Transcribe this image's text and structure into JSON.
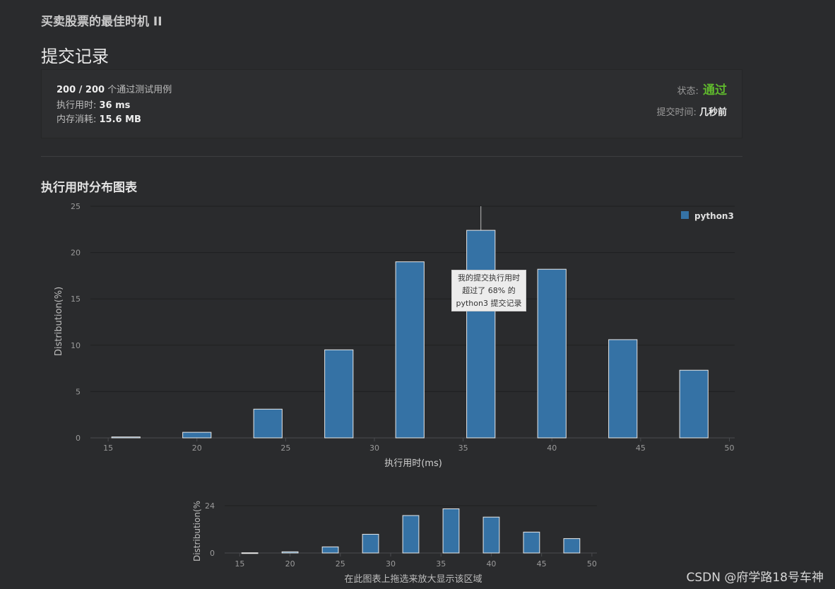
{
  "problem": {
    "title": "买卖股票的最佳时机 II"
  },
  "page": {
    "title": "提交记录"
  },
  "result": {
    "passed": "200 / 200",
    "passed_suffix": "个通过测试用例",
    "runtime_label": "执行用时: ",
    "runtime_value": "36 ms",
    "memory_label": "内存消耗: ",
    "memory_value": "15.6 MB",
    "status_label": "状态: ",
    "status_value": "通过",
    "submit_time_label": "提交时间: ",
    "submit_time_value": "几秒前"
  },
  "section": {
    "title": "执行用时分布图表"
  },
  "tooltip": {
    "line1": "我的提交执行用时",
    "line2": "超过了 68% 的",
    "line3": "python3 提交记录"
  },
  "colors": {
    "bar": "#3572a5",
    "status": "#5fb82d"
  },
  "chart_data": [
    {
      "type": "bar",
      "title": "",
      "xlabel": "执行用时(ms)",
      "ylabel": "Distribution(%)",
      "legend": [
        "python3"
      ],
      "x_ticks": [
        15,
        20,
        25,
        30,
        35,
        40,
        45,
        50
      ],
      "y_ticks": [
        0,
        5,
        10,
        15,
        20,
        25
      ],
      "xlim": [
        14,
        50.3
      ],
      "ylim": [
        0,
        25
      ],
      "series": [
        {
          "name": "python3",
          "x": [
            16,
            20,
            24,
            28,
            32,
            36,
            40,
            44,
            48
          ],
          "values": [
            0.1,
            0.6,
            3.1,
            9.5,
            19.0,
            22.4,
            18.2,
            10.6,
            7.3
          ]
        }
      ],
      "highlight_x": 36
    },
    {
      "type": "bar",
      "title": "",
      "xlabel": "在此图表上拖选来放大显示该区域",
      "ylabel": "Distribution(%",
      "x_ticks": [
        15,
        20,
        25,
        30,
        35,
        40,
        45,
        50
      ],
      "y_ticks": [
        0,
        24
      ],
      "xlim": [
        13.5,
        50.5
      ],
      "ylim": [
        0,
        24
      ],
      "series": [
        {
          "name": "python3",
          "x": [
            16,
            20,
            24,
            28,
            32,
            36,
            40,
            44,
            48
          ],
          "values": [
            0.1,
            0.6,
            3.1,
            9.5,
            19.0,
            22.4,
            18.2,
            10.6,
            7.3
          ]
        }
      ]
    }
  ],
  "watermark": {
    "text": "CSDN @府学路18号车神"
  }
}
